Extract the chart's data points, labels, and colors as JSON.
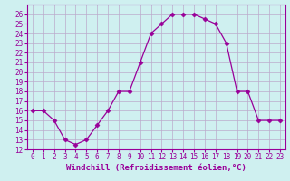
{
  "x": [
    0,
    1,
    2,
    3,
    4,
    5,
    6,
    7,
    8,
    9,
    10,
    11,
    12,
    13,
    14,
    15,
    16,
    17,
    18,
    19,
    20,
    21,
    22,
    23
  ],
  "y": [
    16,
    16,
    15,
    13,
    12.5,
    13,
    14.5,
    16,
    18,
    18,
    21,
    24,
    25,
    26,
    26,
    26,
    25.5,
    25,
    23,
    18,
    18,
    15,
    15,
    15
  ],
  "line_color": "#990099",
  "marker": "D",
  "marker_size": 2.5,
  "bg_color": "#cff0f0",
  "grid_color": "#bbaacc",
  "title": "Windchill (Refroidissement éolien,°C)",
  "xlabel_fontsize": 6.5,
  "ylim": [
    12,
    27
  ],
  "xlim": [
    -0.5,
    23.5
  ],
  "yticks": [
    12,
    13,
    14,
    15,
    16,
    17,
    18,
    19,
    20,
    21,
    22,
    23,
    24,
    25,
    26
  ],
  "xticks": [
    0,
    1,
    2,
    3,
    4,
    5,
    6,
    7,
    8,
    9,
    10,
    11,
    12,
    13,
    14,
    15,
    16,
    17,
    18,
    19,
    20,
    21,
    22,
    23
  ],
  "tick_color": "#990099",
  "tick_fontsize": 5.5
}
